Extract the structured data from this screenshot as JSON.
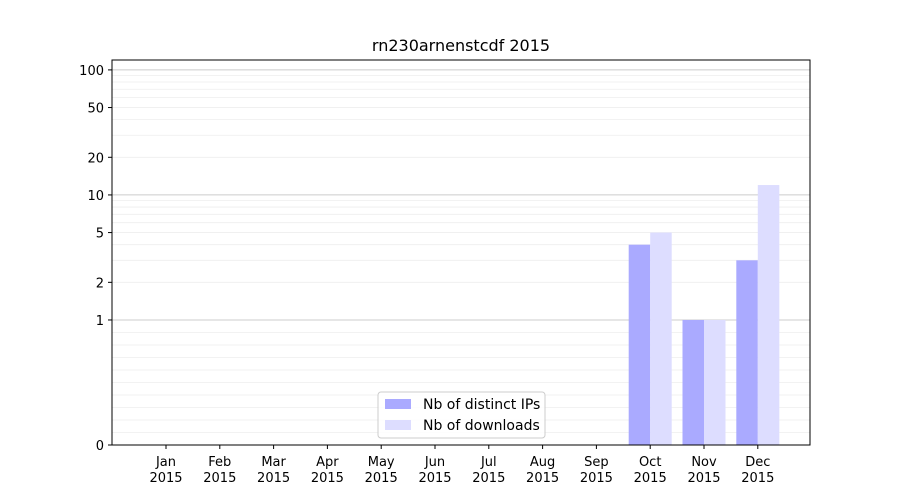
{
  "chart_data": {
    "type": "bar",
    "title": "rn230arnenstcdf 2015",
    "xlabel": "",
    "ylabel": "",
    "y_scale": "symlog",
    "ylim": [
      0,
      120
    ],
    "y_ticks": [
      0,
      1,
      2,
      5,
      10,
      20,
      50,
      100
    ],
    "grid": true,
    "legend_position": "lower-center",
    "categories": [
      "Jan\n2015",
      "Feb\n2015",
      "Mar\n2015",
      "Apr\n2015",
      "May\n2015",
      "Jun\n2015",
      "Jul\n2015",
      "Aug\n2015",
      "Sep\n2015",
      "Oct\n2015",
      "Nov\n2015",
      "Dec\n2015"
    ],
    "series": [
      {
        "name": "Nb of distinct IPs",
        "color": "#aaaaff",
        "values": [
          0,
          0,
          0,
          0,
          0,
          0,
          0,
          0,
          0,
          4,
          1,
          3
        ]
      },
      {
        "name": "Nb of downloads",
        "color": "#ddddff",
        "values": [
          0,
          0,
          0,
          0,
          0,
          0,
          0,
          0,
          0,
          5,
          1,
          12
        ]
      }
    ]
  }
}
